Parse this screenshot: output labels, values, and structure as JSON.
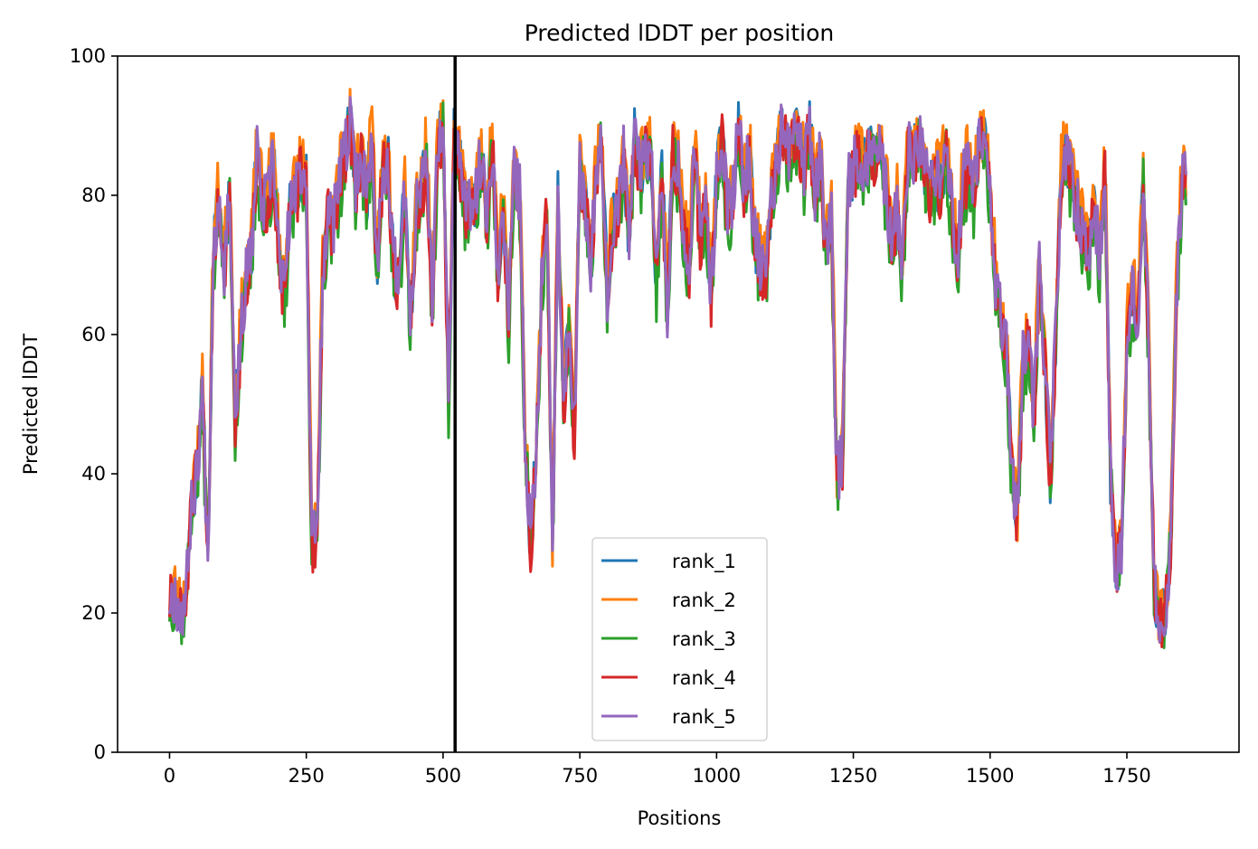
{
  "chart_data": {
    "type": "line",
    "title": "Predicted lDDT per position",
    "xlabel": "Positions",
    "ylabel": "Predicted lDDT",
    "xlim": [
      -95,
      1955
    ],
    "ylim": [
      0,
      100
    ],
    "x_ticks": [
      0,
      250,
      500,
      750,
      1000,
      1250,
      1500,
      1750
    ],
    "y_ticks": [
      0,
      20,
      40,
      60,
      80,
      100
    ],
    "grid": false,
    "legend_position": "lower center",
    "vline_x": 522,
    "series_x_step": 10,
    "series_x_last": 1859,
    "base_profile": [
      22,
      23,
      20,
      22,
      36,
      40,
      52,
      28,
      72,
      80,
      70,
      82,
      48,
      60,
      68,
      72,
      86,
      78,
      80,
      85,
      72,
      66,
      78,
      80,
      84,
      82,
      30,
      32,
      70,
      78,
      76,
      82,
      86,
      90,
      82,
      86,
      80,
      88,
      70,
      85,
      84,
      70,
      68,
      82,
      60,
      78,
      80,
      86,
      64,
      86,
      90,
      52,
      88,
      86,
      78,
      78,
      80,
      86,
      76,
      88,
      70,
      78,
      62,
      84,
      80,
      46,
      30,
      42,
      68,
      78,
      30,
      80,
      50,
      62,
      46,
      84,
      80,
      70,
      84,
      88,
      66,
      76,
      78,
      86,
      74,
      88,
      84,
      86,
      86,
      68,
      84,
      64,
      86,
      84,
      76,
      70,
      86,
      74,
      80,
      66,
      82,
      88,
      78,
      80,
      90,
      82,
      86,
      74,
      70,
      68,
      80,
      84,
      90,
      86,
      88,
      88,
      84,
      90,
      80,
      86,
      72,
      76,
      40,
      42,
      82,
      84,
      86,
      84,
      86,
      86,
      86,
      80,
      74,
      78,
      70,
      86,
      86,
      88,
      84,
      80,
      82,
      82,
      86,
      78,
      70,
      82,
      84,
      80,
      88,
      88,
      80,
      68,
      62,
      58,
      40,
      34,
      56,
      60,
      48,
      70,
      56,
      40,
      60,
      84,
      86,
      82,
      78,
      74,
      72,
      80,
      70,
      84,
      40,
      26,
      30,
      60,
      66,
      62,
      84,
      58,
      24,
      18,
      20,
      30,
      64,
      82,
      82,
      82,
      80,
      74,
      30,
      32,
      44,
      82,
      86,
      86,
      70,
      68,
      82,
      60,
      86
    ],
    "series": [
      {
        "name": "rank_1",
        "color": "#1f77b4",
        "seed": 11
      },
      {
        "name": "rank_2",
        "color": "#ff7f0e",
        "seed": 23
      },
      {
        "name": "rank_3",
        "color": "#2ca02c",
        "seed": 37
      },
      {
        "name": "rank_4",
        "color": "#d62728",
        "seed": 51
      },
      {
        "name": "rank_5",
        "color": "#9467bd",
        "seed": 67
      }
    ],
    "series_offsets": [
      0,
      2,
      -2.5,
      -1,
      0
    ]
  }
}
